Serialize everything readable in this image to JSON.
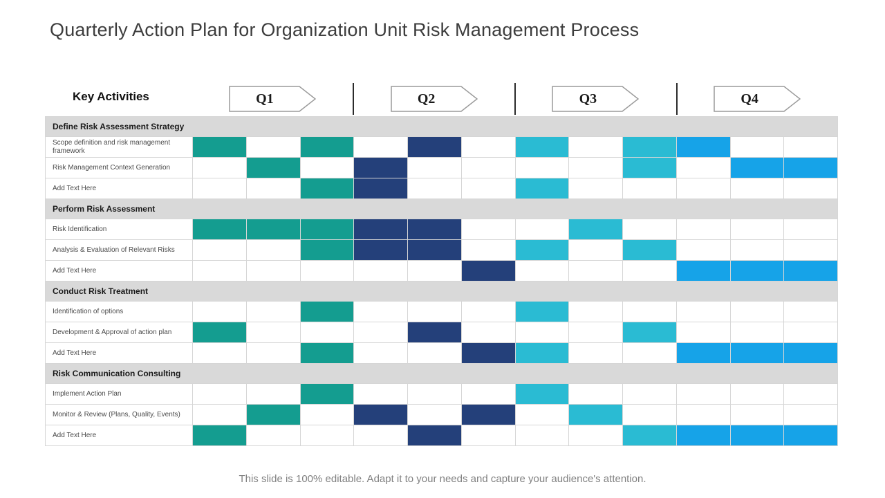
{
  "title": "Quarterly Action Plan for Organization Unit Risk Management Process",
  "key_activities_label": "Key Activities",
  "quarters": [
    "Q1",
    "Q2",
    "Q3",
    "Q4"
  ],
  "footer": "This slide is 100% editable. Adapt it to your needs and capture your audience's attention.",
  "colors": {
    "teal": "#149D90",
    "navy": "#24407A",
    "cyan": "#2ABBD3",
    "blue": "#16A3E8"
  },
  "chart_data": {
    "type": "heatmap",
    "title": "Quarterly Action Plan for Organization Unit Risk Management Process",
    "x_groups": [
      "Q1",
      "Q2",
      "Q3",
      "Q4"
    ],
    "columns_per_quarter": 3,
    "legend_position": "none",
    "grid": "on",
    "sections": [
      {
        "label": "Define Risk Assessment Strategy",
        "rows": [
          {
            "label": "Scope definition and risk management framework",
            "cells": [
              "teal",
              "",
              "teal",
              "",
              "navy",
              "",
              "cyan",
              "",
              "cyan",
              "blue",
              "",
              ""
            ]
          },
          {
            "label": "Risk Management Context Generation",
            "cells": [
              "",
              "teal",
              "",
              "navy",
              "",
              "",
              "",
              "",
              "cyan",
              "",
              "blue",
              "blue"
            ]
          },
          {
            "label": "Add Text Here",
            "cells": [
              "",
              "",
              "teal",
              "navy",
              "",
              "",
              "cyan",
              "",
              "",
              "",
              "",
              ""
            ]
          }
        ]
      },
      {
        "label": "Perform Risk Assessment",
        "rows": [
          {
            "label": "Risk Identification",
            "cells": [
              "teal",
              "teal",
              "teal",
              "navy",
              "navy",
              "",
              "",
              "cyan",
              "",
              "",
              "",
              ""
            ]
          },
          {
            "label": "Analysis & Evaluation of Relevant Risks",
            "cells": [
              "",
              "",
              "teal",
              "navy",
              "navy",
              "",
              "cyan",
              "",
              "cyan",
              "",
              "",
              ""
            ]
          },
          {
            "label": "Add Text Here",
            "cells": [
              "",
              "",
              "",
              "",
              "",
              "navy",
              "",
              "",
              "",
              "blue",
              "blue",
              "blue"
            ]
          }
        ]
      },
      {
        "label": "Conduct Risk Treatment",
        "rows": [
          {
            "label": "Identification of options",
            "cells": [
              "",
              "",
              "teal",
              "",
              "",
              "",
              "cyan",
              "",
              "",
              "",
              "",
              ""
            ]
          },
          {
            "label": "Development & Approval of action plan",
            "cells": [
              "teal",
              "",
              "",
              "",
              "navy",
              "",
              "",
              "",
              "cyan",
              "",
              "",
              ""
            ]
          },
          {
            "label": "Add Text Here",
            "cells": [
              "",
              "",
              "teal",
              "",
              "",
              "navy",
              "cyan",
              "",
              "",
              "blue",
              "blue",
              "blue"
            ]
          }
        ]
      },
      {
        "label": "Risk Communication Consulting",
        "rows": [
          {
            "label": "Implement Action Plan",
            "cells": [
              "",
              "",
              "teal",
              "",
              "",
              "",
              "cyan",
              "",
              "",
              "",
              "",
              ""
            ]
          },
          {
            "label": "Monitor & Review (Plans, Quality, Events)",
            "cells": [
              "",
              "teal",
              "",
              "navy",
              "",
              "navy",
              "",
              "cyan",
              "",
              "",
              "",
              ""
            ]
          },
          {
            "label": "Add Text Here",
            "cells": [
              "teal",
              "",
              "",
              "",
              "navy",
              "",
              "",
              "",
              "cyan",
              "blue",
              "blue",
              "blue"
            ]
          }
        ]
      }
    ]
  }
}
